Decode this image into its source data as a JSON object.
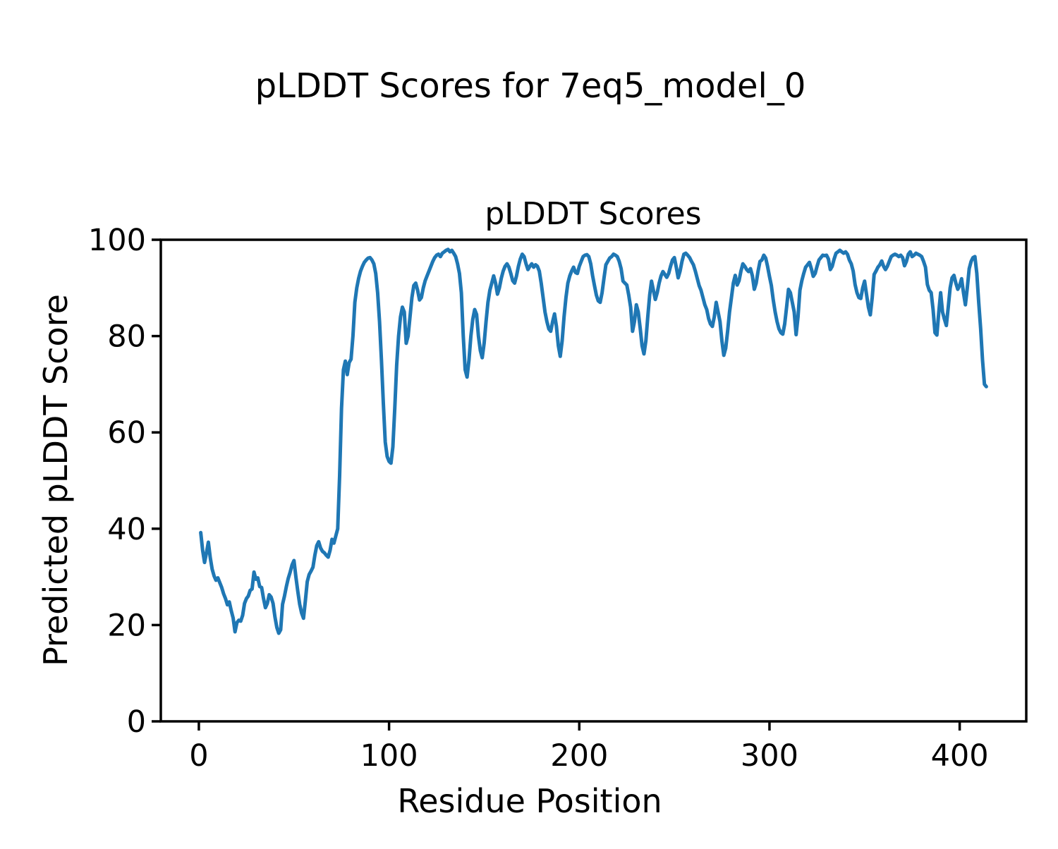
{
  "figure_title": "pLDDT Scores for 7eq5_model_0",
  "chart_data": {
    "type": "line",
    "title": "pLDDT Scores",
    "xlabel": "Residue Position",
    "ylabel": "Predicted pLDDT Score",
    "xlim": [
      -20,
      435
    ],
    "ylim": [
      0,
      100
    ],
    "x_ticks": [
      0,
      100,
      200,
      300,
      400
    ],
    "y_ticks": [
      0,
      20,
      40,
      60,
      80,
      100
    ],
    "grid": false,
    "legend_position": "none",
    "line_color": "#1f77b4",
    "spine_color": "#000000",
    "series": [
      {
        "x_start": 1,
        "x_step": 1,
        "values": [
          39.2,
          35.5,
          33,
          35,
          37.2,
          34,
          31.6,
          30.2,
          29.3,
          29.8,
          28.8,
          27.8,
          26.5,
          25.5,
          24.2,
          24.8,
          23,
          21.5,
          18.6,
          20.5,
          21,
          20.8,
          22,
          24.5,
          25.5,
          26,
          27.2,
          27.5,
          31,
          29.5,
          29.8,
          28,
          27.8,
          25.5,
          23.6,
          24.5,
          26.3,
          25.8,
          24.5,
          21.7,
          19.5,
          18.3,
          19,
          24.3,
          26,
          28,
          29.7,
          31,
          32.5,
          33.4,
          30,
          27,
          24.3,
          22.5,
          21.4,
          25,
          29,
          30.5,
          31.2,
          32,
          34.5,
          36.5,
          37.3,
          36,
          35.3,
          35,
          34.5,
          34.1,
          35.5,
          37.8,
          37,
          38.5,
          40,
          51,
          65,
          73,
          74.8,
          72,
          74.5,
          75.2,
          80,
          87,
          90,
          92,
          93.5,
          94.5,
          95.3,
          95.8,
          96.2,
          96.3,
          95.8,
          95,
          93,
          89,
          83,
          75,
          66,
          58,
          55,
          54,
          53.6,
          57,
          65,
          74,
          80,
          84,
          86,
          85,
          78.5,
          80,
          84,
          88,
          90.5,
          91,
          89.5,
          87.5,
          88,
          90,
          91.5,
          92.5,
          93.5,
          94.5,
          95.5,
          96.3,
          96.8,
          97,
          96.5,
          97.2,
          97.5,
          97.8,
          98,
          97.5,
          97.8,
          97.2,
          96.5,
          95,
          93,
          89,
          80,
          73,
          71.5,
          75,
          80,
          83.5,
          85.5,
          84.5,
          80,
          77,
          75.5,
          78.5,
          83,
          87,
          89.5,
          91,
          92.5,
          91,
          88.7,
          90,
          92,
          93.5,
          94.5,
          95,
          94.3,
          93,
          91.5,
          91,
          92.5,
          94.5,
          96,
          97,
          96.5,
          95,
          93.8,
          94.5,
          95,
          94.3,
          94.8,
          94.5,
          93.5,
          91,
          88,
          85,
          83,
          81.5,
          81,
          83,
          84.6,
          82,
          78,
          75.8,
          79,
          84,
          88,
          91,
          92.5,
          93.5,
          94.3,
          93.2,
          93,
          94.5,
          95.5,
          96.5,
          96.8,
          96.9,
          96.5,
          95,
          92.5,
          90.5,
          88.5,
          87.3,
          87,
          89,
          92,
          94.8,
          95.5,
          96.2,
          96.5,
          97,
          96.8,
          96.5,
          95.5,
          94,
          91.4,
          91,
          90.6,
          88.5,
          86,
          81,
          83,
          86.5,
          85,
          81.7,
          78,
          76.3,
          79,
          84,
          88.5,
          91.4,
          89.5,
          87.6,
          89,
          91,
          92.5,
          93.4,
          92.8,
          92.2,
          93,
          94.5,
          95.8,
          96.3,
          94.3,
          92.1,
          93.5,
          95.5,
          97,
          97.2,
          96.8,
          96.3,
          95.5,
          94.8,
          93.5,
          92,
          90.5,
          89.5,
          88,
          86.5,
          85.5,
          83.6,
          82.5,
          82,
          84,
          87,
          85,
          83,
          79,
          76,
          77.5,
          81,
          85,
          88,
          91,
          92.6,
          90.6,
          91.5,
          93.5,
          95,
          94.5,
          93.8,
          93.4,
          94,
          92.5,
          89.7,
          91,
          93.5,
          95.5,
          95.8,
          96.8,
          96.2,
          94.5,
          92.4,
          90.5,
          87.5,
          85,
          83,
          81.5,
          80.7,
          80.4,
          82.5,
          86,
          89.7,
          89,
          87,
          85,
          80.3,
          84,
          89.5,
          91.5,
          93,
          94.3,
          94.8,
          95.3,
          94,
          92.4,
          93,
          94.5,
          95.8,
          96.3,
          96.8,
          96.7,
          96.8,
          96,
          93.8,
          94.5,
          96,
          97.2,
          97.5,
          97.8,
          97.5,
          97.2,
          97.5,
          97,
          95.8,
          95,
          93.5,
          90.7,
          89,
          88,
          87.8,
          90,
          91.4,
          88.7,
          86,
          84.4,
          88,
          92.8,
          93.5,
          94.3,
          94.8,
          95.6,
          94.5,
          93.8,
          94.5,
          95.5,
          96.5,
          96.8,
          97,
          96.8,
          96.5,
          96.8,
          96.3,
          94.6,
          95.5,
          97,
          97.5,
          96.5,
          96.8,
          97.2,
          97,
          96.8,
          96.5,
          95.5,
          94.3,
          90.7,
          89.5,
          89,
          85.5,
          80.7,
          80.2,
          85,
          89,
          85,
          83.5,
          82.2,
          86,
          90,
          92.1,
          92.6,
          91,
          89.7,
          90.5,
          91.9,
          89,
          86.5,
          90,
          94,
          95.5,
          96.3,
          96.5,
          93,
          87,
          81.6,
          75,
          70,
          69.5
        ]
      }
    ]
  }
}
